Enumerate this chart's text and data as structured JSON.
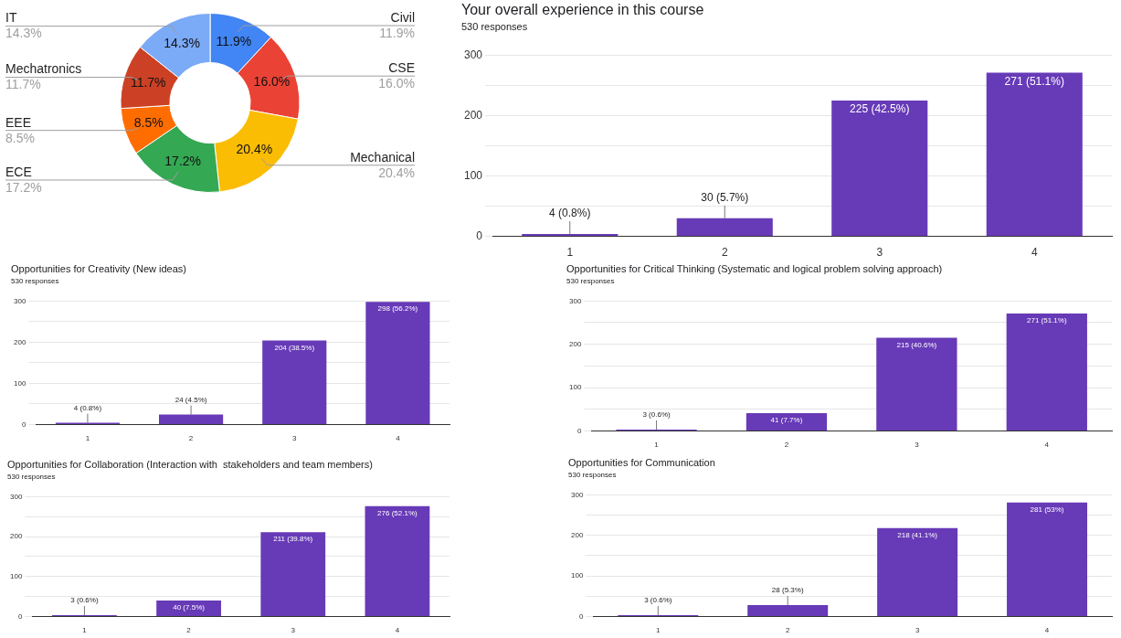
{
  "chart_data": [
    {
      "type": "donut",
      "categories": [
        "Civil",
        "CSE",
        "Mechanical",
        "ECE",
        "EEE",
        "Mechatronics",
        "IT"
      ],
      "values": [
        11.9,
        16.0,
        20.4,
        17.2,
        8.5,
        11.7,
        14.3
      ],
      "colors": [
        "#4285f4",
        "#ea4335",
        "#fbbc04",
        "#34a853",
        "#ff6d01",
        "#cc4125",
        "#7baaf7"
      ],
      "value_labels": [
        "11.9%",
        "16.0%",
        "20.4%",
        "17.2%",
        "8.5%",
        "11.7%",
        "14.3%"
      ]
    },
    {
      "type": "bar",
      "title": "Your overall experience in this course",
      "subtitle": "530 responses",
      "categories": [
        "1",
        "2",
        "3",
        "4"
      ],
      "values": [
        4,
        30,
        225,
        271
      ],
      "color": "#673ab7",
      "value_labels": [
        "4 (0.8%)",
        "30 (5.7%)",
        "225 (42.5%)",
        "271 (51.1%)"
      ],
      "ylim": [
        0,
        300
      ],
      "yticks": [
        0,
        {
          "value": 50,
          "label": null
        },
        100,
        {
          "value": 150,
          "label": null
        },
        200,
        {
          "value": 250,
          "label": null
        },
        300
      ],
      "grid": "y"
    },
    {
      "type": "bar",
      "title": "Opportunities for Creativity (New ideas)",
      "subtitle": "530 responses",
      "categories": [
        "1",
        "2",
        "3",
        "4"
      ],
      "values": [
        4,
        24,
        204,
        298
      ],
      "color": "#673ab7",
      "value_labels": [
        "4 (0.8%)",
        "24 (4.5%)",
        "204 (38.5%)",
        "298 (56.2%)"
      ],
      "ylim": [
        0,
        300
      ],
      "yticks": [
        0,
        {
          "value": 50,
          "label": null
        },
        100,
        {
          "value": 150,
          "label": null
        },
        200,
        {
          "value": 250,
          "label": null
        },
        300
      ],
      "grid": "y"
    },
    {
      "type": "bar",
      "title": "Opportunities for Critical Thinking (Systematic and logical problem solving approach)",
      "subtitle": "530 responses",
      "categories": [
        "1",
        "2",
        "3",
        "4"
      ],
      "values": [
        3,
        41,
        215,
        271
      ],
      "color": "#673ab7",
      "value_labels": [
        "3 (0.6%)",
        "41 (7.7%)",
        "215 (40.6%)",
        "271 (51.1%)"
      ],
      "ylim": [
        0,
        300
      ],
      "yticks": [
        0,
        {
          "value": 50,
          "label": null
        },
        100,
        {
          "value": 150,
          "label": null
        },
        200,
        {
          "value": 250,
          "label": null
        },
        300
      ],
      "grid": "y"
    },
    {
      "type": "bar",
      "title": "Opportunities for Collaboration (Interaction with  stakeholders and team members)",
      "subtitle": "530 responses",
      "categories": [
        "1",
        "2",
        "3",
        "4"
      ],
      "values": [
        3,
        40,
        211,
        276
      ],
      "color": "#673ab7",
      "value_labels": [
        "3 (0.6%)",
        "40 (7.5%)",
        "211 (39.8%)",
        "276 (52.1%)"
      ],
      "ylim": [
        0,
        300
      ],
      "yticks": [
        0,
        {
          "value": 50,
          "label": null
        },
        100,
        {
          "value": 150,
          "label": null
        },
        200,
        {
          "value": 250,
          "label": null
        },
        300
      ],
      "grid": "y"
    },
    {
      "type": "bar",
      "title": "Opportunities for Communication",
      "subtitle": "530 responses",
      "categories": [
        "1",
        "2",
        "3",
        "4"
      ],
      "values": [
        3,
        28,
        218,
        281
      ],
      "color": "#673ab7",
      "value_labels": [
        "3 (0.6%)",
        "28 (5.3%)",
        "218 (41.1%)",
        "281 (53%)"
      ],
      "ylim": [
        0,
        300
      ],
      "yticks": [
        0,
        {
          "value": 50,
          "label": null
        },
        100,
        {
          "value": 150,
          "label": null
        },
        200,
        {
          "value": 250,
          "label": null
        },
        300
      ],
      "grid": "y"
    }
  ]
}
